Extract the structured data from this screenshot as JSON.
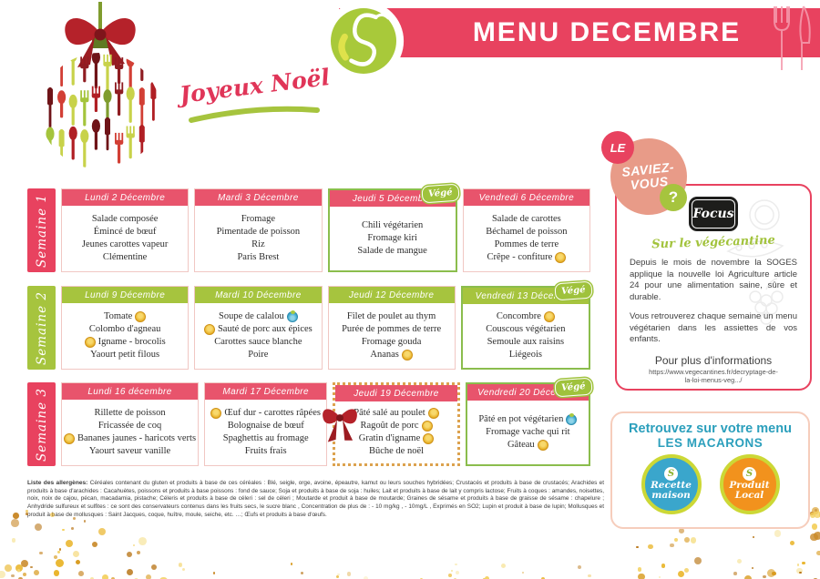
{
  "header": {
    "title": "MENU DECEMBRE",
    "greeting": "Joyeux Noël"
  },
  "vege_badge_label": "Végé",
  "colors": {
    "accent_pink": "#e8425f",
    "header_pink": "#e8546c",
    "accent_green": "#a6c43e",
    "vege_border": "#8bbd4d",
    "teal": "#2b9fbc",
    "macaron_blue": "#3aa6cc",
    "macaron_orange": "#f2921d",
    "gold": "#e7ae22"
  },
  "weeks": [
    {
      "label": "Semaine 1",
      "tab_color": "#e8425f",
      "header_color": "#e8546c",
      "days": [
        {
          "title": "Lundi 2 Décembre",
          "vege": false,
          "festive": false,
          "items": [
            {
              "text": "Salade composée",
              "icon": null,
              "icon_pos": null
            },
            {
              "text": "Émincé de bœuf",
              "icon": null,
              "icon_pos": null
            },
            {
              "text": "Jeunes carottes vapeur",
              "icon": null,
              "icon_pos": null
            },
            {
              "text": "Clémentine",
              "icon": null,
              "icon_pos": null
            }
          ]
        },
        {
          "title": "Mardi 3 Décembre",
          "vege": false,
          "festive": false,
          "items": [
            {
              "text": "Fromage",
              "icon": null,
              "icon_pos": null
            },
            {
              "text": "Pimentade de poisson",
              "icon": null,
              "icon_pos": null
            },
            {
              "text": "Riz",
              "icon": null,
              "icon_pos": null
            },
            {
              "text": "Paris Brest",
              "icon": null,
              "icon_pos": null
            }
          ]
        },
        {
          "title": "Jeudi 5 Décembre",
          "vege": true,
          "festive": false,
          "items": [
            {
              "text": "Chili végétarien",
              "icon": null,
              "icon_pos": null
            },
            {
              "text": "Fromage kiri",
              "icon": null,
              "icon_pos": null
            },
            {
              "text": "Salade de mangue",
              "icon": null,
              "icon_pos": null
            }
          ]
        },
        {
          "title": "Vendredi 6 Décembre",
          "vege": false,
          "festive": false,
          "items": [
            {
              "text": "Salade de carottes",
              "icon": null,
              "icon_pos": null
            },
            {
              "text": "Béchamel de poisson",
              "icon": null,
              "icon_pos": null
            },
            {
              "text": "Pommes de terre",
              "icon": null,
              "icon_pos": null
            },
            {
              "text": "Crêpe - confiture",
              "icon": "produit-local",
              "icon_pos": "right"
            }
          ]
        }
      ]
    },
    {
      "label": "Semaine 2",
      "tab_color": "#a6c43e",
      "header_color": "#a6c43e",
      "days": [
        {
          "title": "Lundi 9 Décembre",
          "vege": false,
          "festive": false,
          "items": [
            {
              "text": "Tomate",
              "icon": "produit-local",
              "icon_pos": "right"
            },
            {
              "text": "Colombo d'agneau",
              "icon": null,
              "icon_pos": null
            },
            {
              "text": "Igname - brocolis",
              "icon": "produit-local",
              "icon_pos": "left"
            },
            {
              "text": "Yaourt petit filous",
              "icon": null,
              "icon_pos": null
            }
          ]
        },
        {
          "title": "Mardi 10 Décembre",
          "vege": false,
          "festive": false,
          "items": [
            {
              "text": "Soupe de calalou",
              "icon": "recette-maison",
              "icon_pos": "right"
            },
            {
              "text": "Sauté de porc aux épices",
              "icon": "produit-local",
              "icon_pos": "left"
            },
            {
              "text": "Carottes sauce blanche",
              "icon": null,
              "icon_pos": null
            },
            {
              "text": "Poire",
              "icon": null,
              "icon_pos": null
            }
          ]
        },
        {
          "title": "Jeudi 12 Décembre",
          "vege": false,
          "festive": false,
          "items": [
            {
              "text": "Filet de poulet au thym",
              "icon": null,
              "icon_pos": null
            },
            {
              "text": "Purée de pommes de terre",
              "icon": null,
              "icon_pos": null
            },
            {
              "text": "Fromage gouda",
              "icon": null,
              "icon_pos": null
            },
            {
              "text": "Ananas",
              "icon": "produit-local",
              "icon_pos": "right"
            }
          ]
        },
        {
          "title": "Vendredi 13 Décembre",
          "vege": true,
          "festive": false,
          "items": [
            {
              "text": "Concombre",
              "icon": "produit-local",
              "icon_pos": "right"
            },
            {
              "text": "Couscous végétarien",
              "icon": null,
              "icon_pos": null
            },
            {
              "text": "Semoule aux raisins",
              "icon": null,
              "icon_pos": null
            },
            {
              "text": "Liégeois",
              "icon": null,
              "icon_pos": null
            }
          ]
        }
      ]
    },
    {
      "label": "Semaine 3",
      "tab_color": "#e8425f",
      "header_color": "#e8546c",
      "days": [
        {
          "title": "Lundi 16 décembre",
          "vege": false,
          "festive": false,
          "items": [
            {
              "text": "Rillette de poisson",
              "icon": null,
              "icon_pos": null
            },
            {
              "text": "Fricassée de coq",
              "icon": null,
              "icon_pos": null
            },
            {
              "text": "Bananes jaunes - haricots verts",
              "icon": "produit-local",
              "icon_pos": "left"
            },
            {
              "text": "Yaourt saveur vanille",
              "icon": null,
              "icon_pos": null
            }
          ]
        },
        {
          "title": "Mardi 17 Décembre",
          "vege": false,
          "festive": false,
          "items": [
            {
              "text": "Œuf dur - carottes râpées",
              "icon": "produit-local",
              "icon_pos": "left"
            },
            {
              "text": "Bolognaise de bœuf",
              "icon": null,
              "icon_pos": null
            },
            {
              "text": "Spaghettis au fromage",
              "icon": null,
              "icon_pos": null
            },
            {
              "text": "Fruits frais",
              "icon": null,
              "icon_pos": null
            }
          ]
        },
        {
          "title": "Jeudi 19 Décembre",
          "vege": false,
          "festive": true,
          "items": [
            {
              "text": "Pâté salé au poulet",
              "icon": "produit-local",
              "icon_pos": "right"
            },
            {
              "text": "Ragoût de porc",
              "icon": "produit-local",
              "icon_pos": "right"
            },
            {
              "text": "Gratin d'igname",
              "icon": "produit-local",
              "icon_pos": "right"
            },
            {
              "text": "Bûche de noël",
              "icon": null,
              "icon_pos": null
            }
          ]
        },
        {
          "title": "Vendredi 20 Décembre",
          "vege": true,
          "festive": false,
          "items": [
            {
              "text": "Pâté en pot végétarien",
              "icon": "recette-maison",
              "icon_pos": "right"
            },
            {
              "text": "Fromage vache qui rit",
              "icon": null,
              "icon_pos": null
            },
            {
              "text": "Gâteau",
              "icon": "produit-local",
              "icon_pos": "right"
            }
          ]
        }
      ]
    }
  ],
  "saviez": {
    "le": "LE",
    "line1": "SAVIEZ-",
    "line2": "VOUS",
    "qmark": "?"
  },
  "focus": {
    "label": "Focus",
    "subtitle": "Sur le végécantine",
    "para1": "Depuis le mois de novembre la SOGES applique la nouvelle loi Agriculture article 24 pour une alimentation saine, sûre et durable.",
    "para2": "Vous retrouverez chaque semaine un menu végétarien dans les assiettes de vos enfants.",
    "more_title": "Pour plus d'informations",
    "url_line1": "https://www.vegecantines.fr/decryptage-de-",
    "url_line2": "la-loi-menus-veg.../"
  },
  "macarons": {
    "title_line1": "Retrouvez sur votre menu",
    "title_line2": "LES MACARONS",
    "s_letter": "S",
    "items": [
      {
        "name": "recette-maison",
        "line1": "Recette",
        "line2": "maison",
        "color": "#3aa6cc"
      },
      {
        "name": "produit-local",
        "line1": "Produit",
        "line2": "Local",
        "color": "#f2921d"
      }
    ]
  },
  "allergens": {
    "lead": "Liste des allergènes:",
    "text": " Céréales contenant du gluten et produits à base de ces céréales : Blé, seigle, orge, avoine, épeautre, kamut ou leurs souches hybridées; Crustacés et produits à base de crustacés; Arachides et produits à base d'arachides : Cacahuètes, poissons et produits à base poissons : fond de sauce; Soja et produits à base de soja : huiles; Lait et produits à base de lait y compris lactose; Fruits à coques : amandes, noisettes, noix, noix de cajou, pécan, macadamia, pistache; Céleris et produits à base de céleri : sel de céleri ; Moutarde et produit à base de moutarde; Graines de sésame et produits à base de graisse de sésame : chapelure ; Anhydride sulfureux et sulfites : ce sont des conservateurs contenus dans les fruits secs, le sucre blanc , Concentration de plus de : - 10 mg/kg , - 10mg/L , Exprimés en SO2; Lupin et produit à base de lupin; Mollusques et produit à base de mollusques : Saint Jacques, coque, huître, moule, seiche, etc. …; Œufs et produits à base d'œufs."
  }
}
